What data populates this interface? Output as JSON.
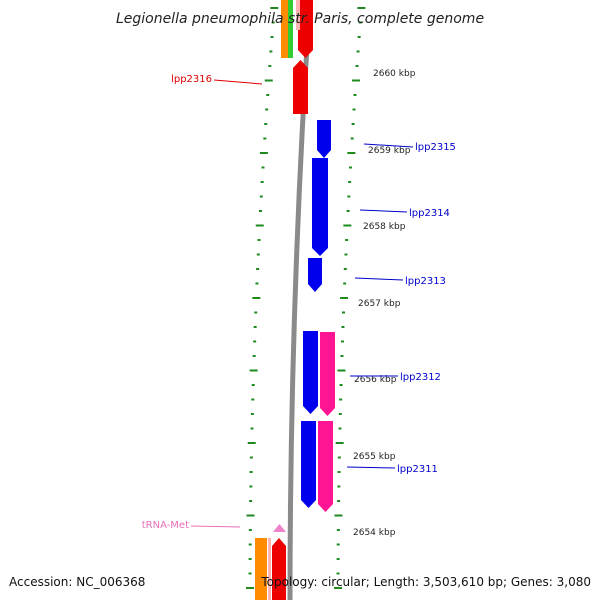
{
  "title": "Legionella pneumophila str. Paris, complete genome",
  "accession": "Accession: NC_006368",
  "topology": "Topology: circular; Length: 3,503,610 bp; Genes: 3,080",
  "colors": {
    "background": "#ffffff",
    "backbone": "#8a8a8a",
    "tick": "#1e8a1e",
    "cds_blue": "#0000ee",
    "cds_red": "#ee0000",
    "cds_pink": "#ff1493",
    "cds_orange": "#ff8c00",
    "cds_green": "#33cc33",
    "trna": "#ee82c8",
    "label_red": "#dd0000",
    "label_blue": "#0000cc",
    "label_pink": "#e86fb8"
  },
  "kbp_marks": [
    {
      "label": "2660 kbp",
      "value": 2660
    },
    {
      "label": "2659 kbp",
      "value": 2659
    },
    {
      "label": "2658 kbp",
      "value": 2658
    },
    {
      "label": "2657 kbp",
      "value": 2657
    },
    {
      "label": "2656 kbp",
      "value": 2656
    },
    {
      "label": "2655 kbp",
      "value": 2655
    },
    {
      "label": "2654 kbp",
      "value": 2654
    }
  ],
  "gene_labels": [
    {
      "name": "lpp2316",
      "color": "label_red",
      "side": "left"
    },
    {
      "name": "lpp2315",
      "color": "label_blue",
      "side": "right"
    },
    {
      "name": "lpp2314",
      "color": "label_blue",
      "side": "right"
    },
    {
      "name": "lpp2313",
      "color": "label_blue",
      "side": "right"
    },
    {
      "name": "lpp2312",
      "color": "label_blue",
      "side": "right"
    },
    {
      "name": "lpp2311",
      "color": "label_blue",
      "side": "right"
    },
    {
      "name": "tRNA-Met",
      "color": "label_pink",
      "side": "left"
    }
  ]
}
